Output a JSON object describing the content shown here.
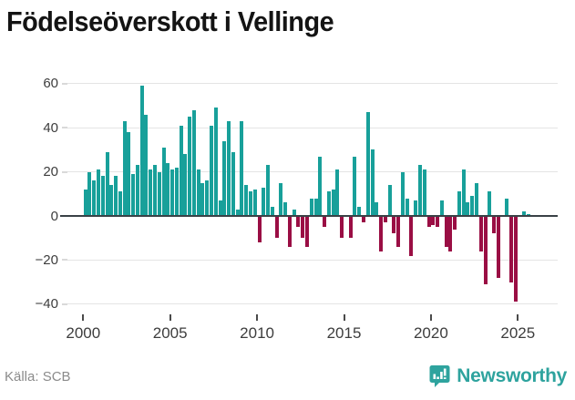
{
  "title": "Födelseöverskott i Vellinge",
  "source": {
    "label": "Källa: SCB"
  },
  "brand": {
    "name": "Newsworthy"
  },
  "colors": {
    "positive_bar": "#18a09a",
    "negative_bar": "#9a0e44",
    "zero_line": "#3a4146",
    "gridline": "#e4e4e4",
    "brand_teal": "#2ea39e",
    "axis_text": "#3d3d3d",
    "source_text": "#8b8b8b"
  },
  "chart_data": {
    "type": "bar",
    "title": "Födelseöverskott i Vellinge",
    "xlabel": "",
    "ylabel": "",
    "frequency": "quarterly",
    "start_period": "2000Q1",
    "end_period": "2025Q3",
    "x_tick_labels": [
      "2000",
      "2005",
      "2010",
      "2015",
      "2020",
      "2025"
    ],
    "x_tick_years": [
      2000,
      2005,
      2010,
      2015,
      2020,
      2025
    ],
    "y_ticks": [
      60,
      40,
      20,
      0,
      -20,
      -40
    ],
    "ylim": [
      -45,
      62
    ],
    "grid": "horizontal",
    "legend": "none",
    "values": [
      12,
      20,
      16,
      21,
      18,
      29,
      14,
      18,
      11,
      43,
      38,
      19,
      23,
      59,
      46,
      21,
      23,
      20,
      31,
      24,
      21,
      22,
      41,
      28,
      45,
      48,
      21,
      15,
      16,
      41,
      49,
      7,
      34,
      43,
      29,
      3,
      43,
      14,
      11,
      12,
      -12,
      13,
      23,
      4,
      -10,
      15,
      6,
      -14,
      3,
      -5,
      -10,
      -14,
      8,
      8,
      27,
      -5,
      11,
      12,
      21,
      -10,
      0,
      -10,
      27,
      4,
      -3,
      47,
      30,
      6,
      -16,
      -3,
      14,
      -8,
      -14,
      20,
      8,
      -18,
      7,
      23,
      21,
      -5,
      -4,
      -5,
      7,
      -14,
      -16,
      -6,
      11,
      21,
      6,
      9,
      15,
      -16,
      -31,
      11,
      -8,
      -28,
      0,
      8,
      -30,
      -39,
      0,
      2,
      1
    ]
  }
}
